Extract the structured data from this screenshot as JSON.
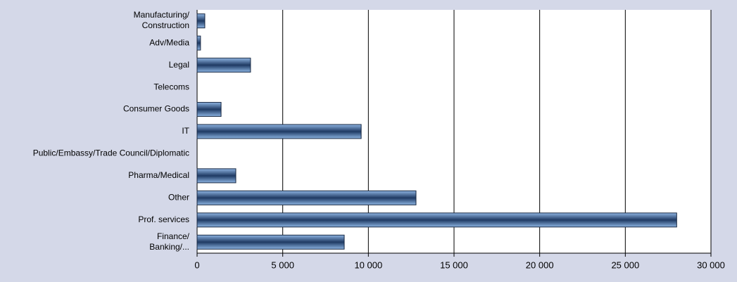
{
  "chart_data": {
    "type": "hbar",
    "categories": [
      "Manufacturing/\nConstruction",
      "Adv/Media",
      "Legal",
      "Telecoms",
      "Consumer Goods",
      "IT",
      "Public/Embassy/Trade Council/Diplomatic",
      "Pharma/Medical",
      "Other",
      "Prof. services",
      "Finance/\nBanking/..."
    ],
    "values": [
      450,
      200,
      3120,
      0,
      1400,
      9580,
      0,
      2260,
      12780,
      28000,
      8590
    ],
    "color": "#8db4e2",
    "xlim": [
      0,
      30000
    ],
    "xticks": [
      0,
      {
        "value": 5000,
        "label": "5 000"
      },
      {
        "value": 10000,
        "label": "10 000"
      },
      {
        "value": 15000,
        "label": "15 000"
      },
      {
        "value": 20000,
        "label": "20 000"
      },
      {
        "value": 25000,
        "label": "25 000"
      },
      {
        "value": 30000,
        "label": "30 000"
      }
    ],
    "grid": true
  }
}
